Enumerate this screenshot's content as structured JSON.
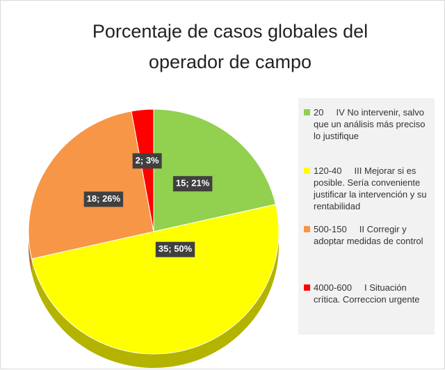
{
  "chart_data": {
    "type": "pie",
    "title": "Porcentaje de casos globales del operador de campo",
    "categories": [
      "20     IV No intervenir, salvo que un análisis más preciso lo justifique",
      "120-40     III Mejorar si es posible. Sería conveniente justificar la intervención y su rentabilidad",
      "500-150     II Corregir y adoptar medidas de control",
      "4000-600     I Situación crítica. Correccion urgente"
    ],
    "values": [
      15,
      35,
      18,
      2
    ],
    "value_labels": [
      "15; 21%",
      "35; 50%",
      "18; 26%",
      "2; 3%"
    ],
    "colors": [
      "#92d050",
      "#ffff00",
      "#f79646",
      "#ff0000"
    ],
    "side_colors": [
      "#6f9e3c",
      "#b3b300",
      "#b86c30",
      "#b30000"
    ],
    "legend": "right"
  }
}
